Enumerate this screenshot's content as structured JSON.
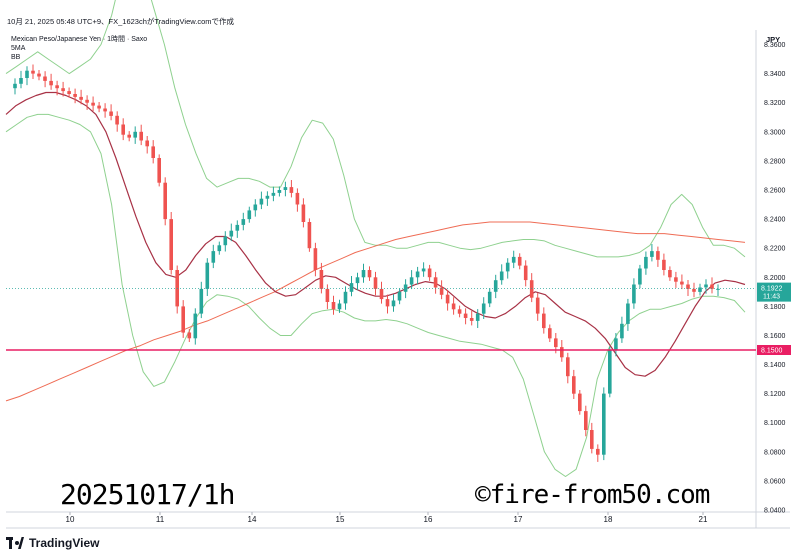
{
  "header": {
    "info": "10月 21, 2025 05:48 UTC+9、FX_1623chがTradingView.comで作成"
  },
  "legend": {
    "title": "Mexican Peso/Japanese Yen · 1時間 · Saxo",
    "indicators": [
      "5MA",
      "BB"
    ]
  },
  "currency": "JPY",
  "price_tag": {
    "price": "8.1922",
    "countdown": "11:43"
  },
  "level_tag": "8.1500",
  "captions": {
    "left": "20251017/1h",
    "right": "©fire-from50.com"
  },
  "footer": {
    "brand": "TradingView"
  },
  "colors": {
    "up": "#26a69a",
    "down": "#ef5350",
    "bb": "#8fd18f",
    "sma": "#ef6c55",
    "ma_short": "#a83246",
    "level": "#e91e63",
    "price": "#26a69a"
  },
  "chart_data": {
    "type": "candlestick",
    "ylim": [
      8.04,
      8.37
    ],
    "y_ticks": [
      "8.3600",
      "8.3400",
      "8.3200",
      "8.3000",
      "8.2800",
      "8.2600",
      "8.2400",
      "8.2200",
      "8.2000",
      "8.1800",
      "8.1600",
      "8.1400",
      "8.1200",
      "8.1000",
      "8.0800",
      "8.0600",
      "8.0400"
    ],
    "x_ticks": [
      "10",
      "11",
      "14",
      "15",
      "16",
      "17",
      "18",
      "21"
    ],
    "horizontal_level": 8.15,
    "last_price": 8.1922,
    "close_series": [
      8.33,
      8.333,
      8.337,
      8.342,
      8.34,
      8.338,
      8.335,
      8.332,
      8.33,
      8.328,
      8.326,
      8.324,
      8.322,
      8.32,
      8.318,
      8.316,
      8.314,
      8.311,
      8.305,
      8.298,
      8.296,
      8.3,
      8.294,
      8.29,
      8.282,
      8.265,
      8.24,
      8.205,
      8.18,
      8.162,
      8.158,
      8.175,
      8.192,
      8.21,
      8.218,
      8.222,
      8.228,
      8.232,
      8.236,
      8.24,
      8.246,
      8.25,
      8.254,
      8.256,
      8.258,
      8.26,
      8.262,
      8.258,
      8.25,
      8.238,
      8.22,
      8.205,
      8.192,
      8.183,
      8.178,
      8.182,
      8.19,
      8.196,
      8.2,
      8.205,
      8.2,
      8.192,
      8.185,
      8.18,
      8.184,
      8.19,
      8.195,
      8.2,
      8.204,
      8.206,
      8.2,
      8.193,
      8.188,
      8.182,
      8.178,
      8.175,
      8.172,
      8.17,
      8.175,
      8.182,
      8.19,
      8.198,
      8.204,
      8.21,
      8.214,
      8.208,
      8.198,
      8.186,
      8.175,
      8.165,
      8.158,
      8.152,
      8.145,
      8.132,
      8.12,
      8.108,
      8.095,
      8.082,
      8.078,
      8.12,
      8.15,
      8.158,
      8.168,
      8.182,
      8.195,
      8.206,
      8.214,
      8.218,
      8.212,
      8.205,
      8.2,
      8.197,
      8.195,
      8.192,
      8.19,
      8.193,
      8.195,
      8.192,
      8.192
    ],
    "bb_upper": [
      8.34,
      8.345,
      8.35,
      8.355,
      8.35,
      8.345,
      8.34,
      8.345,
      8.35,
      8.36,
      8.38,
      8.41,
      8.42,
      8.41,
      8.385,
      8.36,
      8.33,
      8.305,
      8.285,
      8.268,
      8.262,
      8.265,
      8.268,
      8.268,
      8.266,
      8.262,
      8.262,
      8.276,
      8.296,
      8.308,
      8.306,
      8.295,
      8.27,
      8.24,
      8.224,
      8.222,
      8.222,
      8.22,
      8.22,
      8.222,
      8.224,
      8.224,
      8.222,
      8.22,
      8.219,
      8.22,
      8.222,
      8.224,
      8.225,
      8.226,
      8.226,
      8.225,
      8.222,
      8.22,
      8.218,
      8.216,
      8.214,
      8.214,
      8.214,
      8.215,
      8.217,
      8.222,
      8.234,
      8.25,
      8.257,
      8.25,
      8.234,
      8.222,
      8.222,
      8.22,
      8.214
    ],
    "bb_lower": [
      8.3,
      8.305,
      8.31,
      8.312,
      8.312,
      8.31,
      8.308,
      8.305,
      8.3,
      8.285,
      8.25,
      8.195,
      8.16,
      8.135,
      8.125,
      8.128,
      8.142,
      8.158,
      8.172,
      8.183,
      8.188,
      8.187,
      8.185,
      8.18,
      8.172,
      8.165,
      8.16,
      8.16,
      8.168,
      8.175,
      8.177,
      8.178,
      8.176,
      8.172,
      8.17,
      8.17,
      8.171,
      8.17,
      8.168,
      8.165,
      8.162,
      8.16,
      8.158,
      8.156,
      8.155,
      8.154,
      8.152,
      8.15,
      8.145,
      8.13,
      8.105,
      8.08,
      8.068,
      8.063,
      8.068,
      8.09,
      8.13,
      8.15,
      8.162,
      8.17,
      8.175,
      8.178,
      8.178,
      8.18,
      8.182,
      8.185,
      8.187,
      8.187,
      8.186,
      8.184,
      8.176
    ],
    "sma": [
      8.115,
      8.118,
      8.122,
      8.126,
      8.13,
      8.134,
      8.138,
      8.142,
      8.146,
      8.15,
      8.153,
      8.157,
      8.16,
      8.163,
      8.167,
      8.17,
      8.174,
      8.178,
      8.182,
      8.186,
      8.19,
      8.195,
      8.2,
      8.205,
      8.209,
      8.213,
      8.217,
      8.22,
      8.223,
      8.226,
      8.228,
      8.23,
      8.232,
      8.234,
      8.236,
      8.237,
      8.238,
      8.238,
      8.238,
      8.238,
      8.237,
      8.236,
      8.235,
      8.234,
      8.233,
      8.232,
      8.231,
      8.23,
      8.23,
      8.23,
      8.229,
      8.228,
      8.227,
      8.226,
      8.225,
      8.224
    ],
    "ma_short": [
      8.312,
      8.318,
      8.322,
      8.325,
      8.327,
      8.327,
      8.325,
      8.322,
      8.318,
      8.312,
      8.3,
      8.282,
      8.262,
      8.242,
      8.224,
      8.21,
      8.202,
      8.2,
      8.205,
      8.215,
      8.223,
      8.228,
      8.228,
      8.224,
      8.215,
      8.205,
      8.196,
      8.19,
      8.187,
      8.188,
      8.193,
      8.198,
      8.201,
      8.2,
      8.196,
      8.192,
      8.189,
      8.187,
      8.187,
      8.189,
      8.192,
      8.195,
      8.197,
      8.196,
      8.192,
      8.186,
      8.18,
      8.176,
      8.173,
      8.172,
      8.175,
      8.18,
      8.186,
      8.19,
      8.188,
      8.182,
      8.176,
      8.173,
      8.17,
      8.165,
      8.158,
      8.148,
      8.138,
      8.133,
      8.132,
      8.136,
      8.145,
      8.156,
      8.168,
      8.18,
      8.19,
      8.196,
      8.198,
      8.197,
      8.195
    ]
  }
}
